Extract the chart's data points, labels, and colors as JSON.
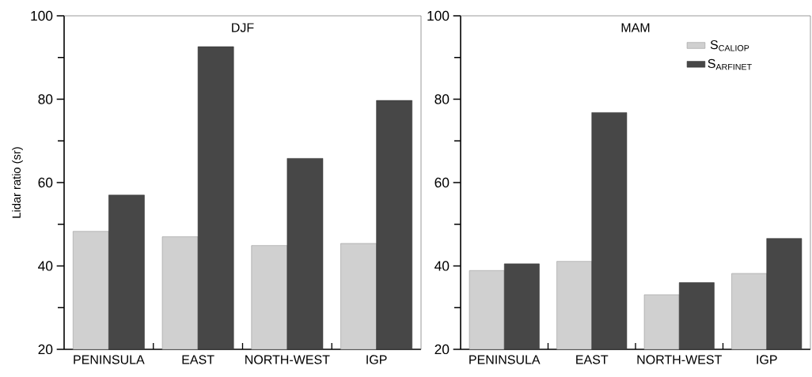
{
  "chart_data": [
    {
      "type": "bar",
      "title": "DJF",
      "ylabel": "Lidar ratio (sr)",
      "categories": [
        "PENINSULA",
        "EAST",
        "NORTH-WEST",
        "IGP"
      ],
      "series": [
        {
          "color": "#d0d0d0",
          "values": [
            48.3,
            47.0,
            44.9,
            45.4
          ]
        },
        {
          "color": "#474747",
          "values": [
            57.0,
            92.6,
            65.8,
            79.7
          ]
        }
      ],
      "ylim": [
        20,
        100
      ],
      "yticks": [
        20,
        40,
        60,
        80,
        100
      ],
      "grid": false,
      "legend": false
    },
    {
      "type": "bar",
      "title": "MAM",
      "categories": [
        "PENINSULA",
        "EAST",
        "NORTH-WEST",
        "IGP"
      ],
      "series": [
        {
          "name": "S$_{CALIOP}$",
          "color": "#d0d0d0",
          "values": [
            38.9,
            41.1,
            33.1,
            38.2
          ]
        },
        {
          "name": "S$_{ARFINET}$",
          "color": "#474747",
          "values": [
            40.5,
            76.8,
            36.0,
            46.6
          ]
        }
      ],
      "ylim": [
        20,
        100
      ],
      "yticks": [
        20,
        40,
        60,
        80,
        100
      ],
      "grid": false,
      "legend": "top right"
    }
  ]
}
